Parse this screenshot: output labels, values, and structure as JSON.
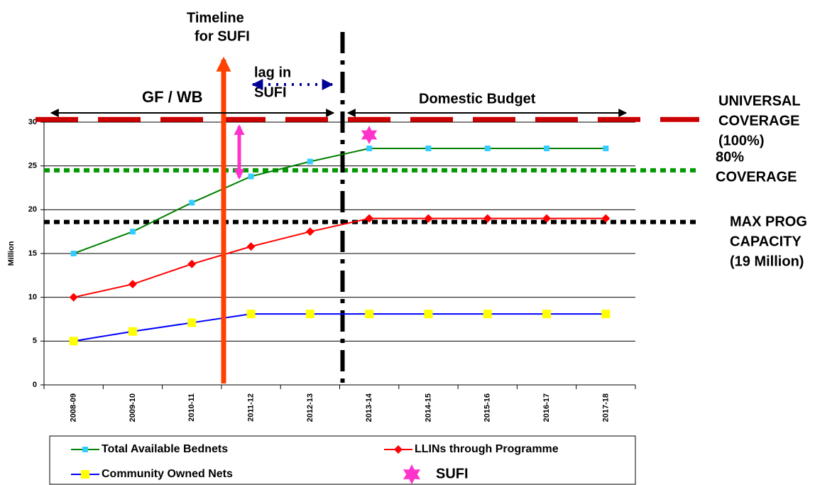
{
  "chart_data": {
    "type": "line",
    "y_label": "Million",
    "categories": [
      "2008-09",
      "2009-10",
      "2010-11",
      "2011-12",
      "2012-13",
      "2013-14",
      "2014-15",
      "2015-16",
      "2016-17",
      "2017-18"
    ],
    "series": [
      {
        "name": "Total Available Bednets",
        "color": "#008000",
        "marker_color": "#33ccff",
        "marker": "square-small",
        "values": [
          15,
          17.5,
          20.8,
          23.8,
          25.5,
          27,
          27,
          27,
          27,
          27
        ]
      },
      {
        "name": "LLINs through Programme",
        "color": "#ff0000",
        "marker_color": "#ff0000",
        "marker": "diamond",
        "values": [
          10,
          11.5,
          13.8,
          15.8,
          17.5,
          19,
          19,
          19,
          19,
          19
        ]
      },
      {
        "name": "Community Owned Nets",
        "color": "#0000ff",
        "marker_color": "#ffff00",
        "marker": "square",
        "values": [
          5,
          6.1,
          7.1,
          8.1,
          8.1,
          8.1,
          8.1,
          8.1,
          8.1,
          8.1
        ]
      }
    ],
    "ylim": [
      0,
      30
    ],
    "yticks": [
      0,
      5,
      10,
      15,
      20,
      25,
      30
    ],
    "grid": true,
    "reference_lines": [
      {
        "value": 30.3,
        "color": "#cc0000",
        "style": "dashed",
        "label": [
          "UNIVERSAL",
          "COVERAGE",
          "(100%)"
        ]
      },
      {
        "value": 24.5,
        "color": "#009900",
        "style": "dotted",
        "label": [
          "80%",
          "COVERAGE"
        ]
      },
      {
        "value": 18.6,
        "color": "#000000",
        "style": "dotted",
        "label": [
          "MAX PROG",
          "CAPACITY",
          "(19 Million)"
        ]
      }
    ],
    "annotations": {
      "timeline": [
        "Timeline",
        "for  SUFI"
      ],
      "lag": [
        "lag in",
        "SUFI"
      ],
      "gf_wb": "GF / WB",
      "domestic": "Domestic Budget"
    },
    "legend_extra": "SUFI"
  }
}
